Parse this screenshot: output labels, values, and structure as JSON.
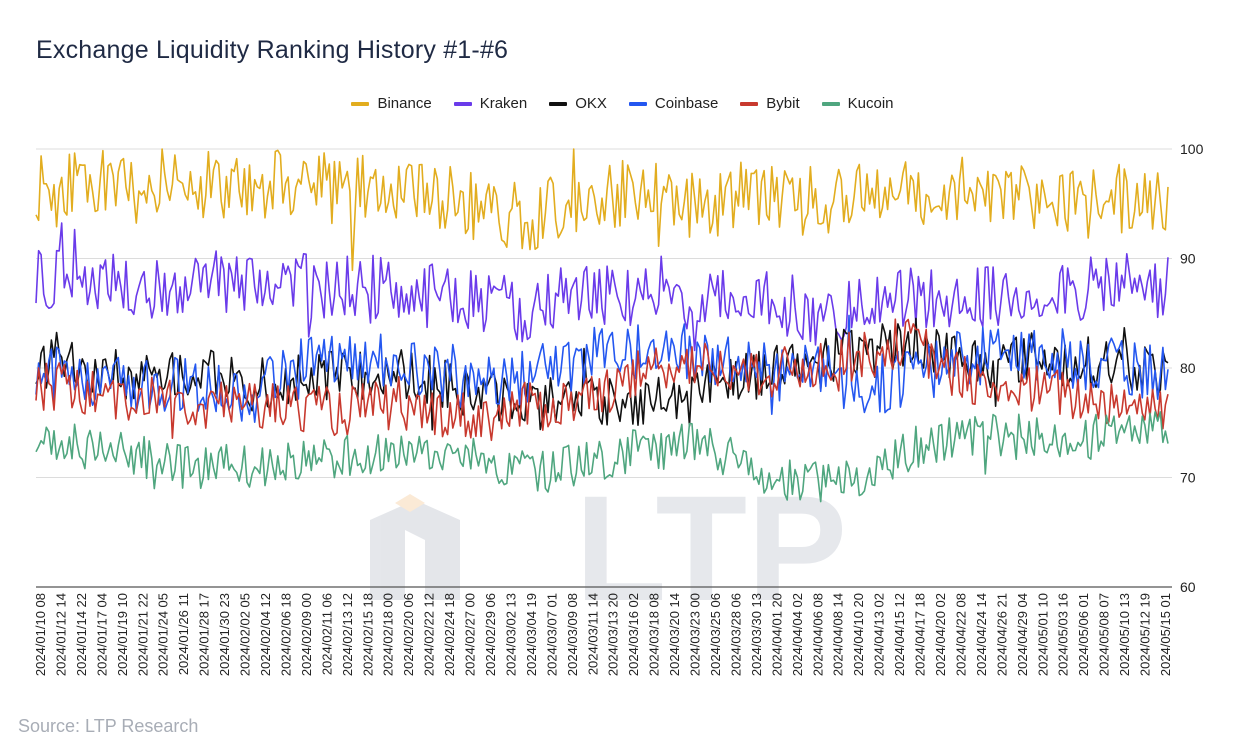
{
  "title": "Exchange Liquidity Ranking History #1-#6",
  "source": "Source: LTP Research",
  "watermark": "LTP",
  "chart_data": {
    "type": "line",
    "title": "Exchange Liquidity Ranking History #1-#6",
    "xlabel": "",
    "ylabel": "",
    "ylim": [
      60,
      100
    ],
    "yticks": [
      60,
      70,
      80,
      90,
      100
    ],
    "grid": true,
    "legend_position": "top-center",
    "x_tick_labels": [
      "2024/01/10 08",
      "2024/01/12 14",
      "2024/01/14 22",
      "2024/01/17 04",
      "2024/01/19 10",
      "2024/01/21 22",
      "2024/01/24 05",
      "2024/01/26 11",
      "2024/01/28 17",
      "2024/01/30 23",
      "2024/02/02 05",
      "2024/02/04 12",
      "2024/02/06 18",
      "2024/02/09 00",
      "2024/02/11 06",
      "2024/02/13 12",
      "2024/02/15 18",
      "2024/02/18 00",
      "2024/02/20 06",
      "2024/02/22 12",
      "2024/02/24 18",
      "2024/02/27 00",
      "2024/02/29 06",
      "2024/03/02 13",
      "2024/03/04 19",
      "2024/03/07 01",
      "2024/03/09 08",
      "2024/03/11 14",
      "2024/03/13 20",
      "2024/03/16 02",
      "2024/03/18 08",
      "2024/03/20 14",
      "2024/03/23 00",
      "2024/03/25 06",
      "2024/03/28 06",
      "2024/03/30 13",
      "2024/04/01 20",
      "2024/04/04 02",
      "2024/04/06 08",
      "2024/04/08 14",
      "2024/04/10 20",
      "2024/04/13 02",
      "2024/04/15 12",
      "2024/04/17 18",
      "2024/04/20 02",
      "2024/04/22 08",
      "2024/04/24 14",
      "2024/04/26 21",
      "2024/04/29 04",
      "2024/05/01 10",
      "2024/05/03 16",
      "2024/05/06 01",
      "2024/05/08 07",
      "2024/05/10 13",
      "2024/05/12 19",
      "2024/05/15 01"
    ],
    "series": [
      {
        "name": "Binance",
        "color": "#e2ad1f",
        "values": [
          96.5,
          96,
          97,
          97,
          96.5,
          96,
          97.5,
          97,
          97,
          96.5,
          96,
          96.5,
          97,
          97,
          96.5,
          96,
          96.5,
          97,
          96.5,
          96,
          95.5,
          95,
          94.5,
          94,
          93.5,
          94.5,
          95.5,
          95,
          95.5,
          96,
          95.5,
          95.5,
          95,
          95,
          95.5,
          96,
          96,
          95.5,
          95.5,
          95,
          95.5,
          96,
          96,
          95.5,
          96,
          96.5,
          96.5,
          96,
          96,
          95.5,
          95.5,
          95,
          95.5,
          95.5,
          95,
          95.5
        ]
      },
      {
        "name": "Kraken",
        "color": "#6a3bea",
        "values": [
          88,
          88.5,
          88,
          88,
          87.5,
          87.5,
          87,
          88,
          88.5,
          88,
          87.5,
          88,
          88,
          87.5,
          87,
          87.5,
          87.5,
          87,
          86.5,
          86.5,
          87,
          86.5,
          86,
          85.5,
          85,
          86,
          86.5,
          87,
          86.5,
          86.5,
          86,
          86.5,
          86.5,
          86,
          86,
          86.5,
          85.5,
          85.5,
          85,
          85.5,
          85.5,
          86,
          86.5,
          86,
          86.5,
          86.5,
          86.5,
          86,
          86.5,
          87,
          87.5,
          87,
          87.5,
          88,
          87,
          87.5
        ]
      },
      {
        "name": "OKX",
        "color": "#111111",
        "values": [
          80,
          81,
          80.5,
          80,
          79.5,
          79,
          79.5,
          80,
          79.5,
          79,
          78.5,
          78,
          78.5,
          79,
          79,
          79.5,
          79.5,
          80,
          79.5,
          79,
          78.5,
          77.5,
          77.5,
          77,
          76.5,
          77,
          77.5,
          77,
          77,
          77,
          77,
          77.5,
          78,
          79,
          79.5,
          79.5,
          80,
          80.5,
          80.5,
          81,
          81.5,
          81.5,
          82,
          82.5,
          81.5,
          81,
          80.5,
          80.5,
          81,
          81,
          80.5,
          80.5,
          80.5,
          80,
          80,
          79.5
        ]
      },
      {
        "name": "Coinbase",
        "color": "#2457f0",
        "values": [
          79,
          79.5,
          79,
          79,
          78.5,
          78,
          78,
          78.5,
          78.5,
          78,
          77.5,
          78,
          79,
          80,
          80.5,
          80.5,
          81,
          81,
          80.5,
          80,
          79.5,
          79,
          78.5,
          78.5,
          79,
          80,
          80.5,
          81,
          81.5,
          81.5,
          82,
          81.5,
          81.5,
          81,
          80.5,
          80,
          79.5,
          79.5,
          79.5,
          79,
          78.5,
          78.5,
          79,
          79.5,
          80.5,
          81,
          81,
          81.5,
          81.5,
          81,
          81,
          80.5,
          80,
          80,
          79.5,
          80
        ]
      },
      {
        "name": "Bybit",
        "color": "#c8392e",
        "values": [
          78,
          78.5,
          78,
          77.5,
          77.5,
          77,
          77,
          77,
          76.5,
          76.5,
          76.5,
          76.5,
          76.5,
          76.5,
          76,
          76,
          76.5,
          76.5,
          76,
          76,
          76,
          75.5,
          75.5,
          76,
          76.5,
          76.5,
          77,
          77.5,
          78,
          79,
          80,
          80.5,
          80.5,
          80,
          79.5,
          79,
          79.5,
          80,
          80.5,
          81,
          81,
          81.5,
          82.5,
          82,
          80,
          79,
          78.5,
          78,
          78,
          78,
          77.5,
          77,
          77,
          77,
          76.5,
          76.5
        ]
      },
      {
        "name": "Kucoin",
        "color": "#4fa67f",
        "values": [
          73,
          73.5,
          73,
          72.5,
          72.5,
          72,
          71.5,
          71,
          71,
          71,
          71,
          71,
          71.5,
          71.5,
          71.5,
          72,
          72,
          72,
          72,
          72,
          72,
          72,
          71.5,
          71,
          70.5,
          70.5,
          71,
          71.5,
          72,
          72.5,
          72.5,
          73,
          73,
          72.5,
          71.5,
          70.5,
          70,
          69.5,
          69.5,
          69.5,
          70,
          70.5,
          72,
          73,
          73.5,
          73.5,
          74,
          74,
          74,
          74,
          73.5,
          73.5,
          74,
          74,
          74,
          74
        ]
      }
    ]
  }
}
